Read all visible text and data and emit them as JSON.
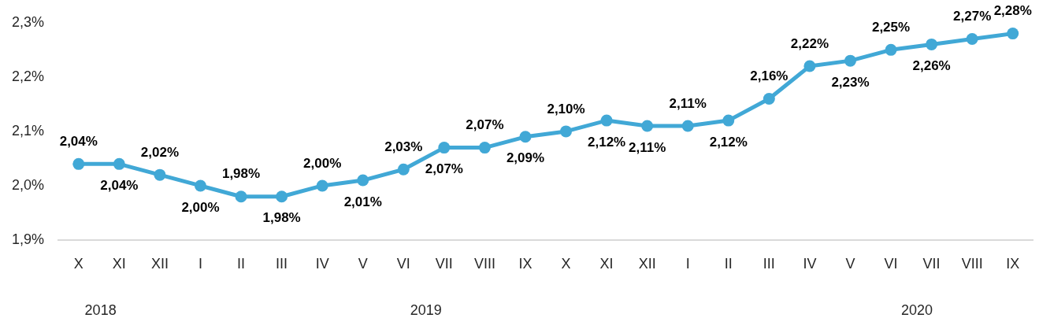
{
  "chart_data": {
    "type": "line",
    "categories": [
      "X",
      "XI",
      "XII",
      "I",
      "II",
      "III",
      "IV",
      "V",
      "VI",
      "VII",
      "VIII",
      "IX",
      "X",
      "XI",
      "XII",
      "I",
      "II",
      "III",
      "IV",
      "V",
      "VI",
      "VII",
      "VIII",
      "IX"
    ],
    "values": [
      2.04,
      2.04,
      2.02,
      2.0,
      1.98,
      1.98,
      2.0,
      2.01,
      2.03,
      2.07,
      2.07,
      2.09,
      2.1,
      2.12,
      2.11,
      2.11,
      2.12,
      2.16,
      2.22,
      2.23,
      2.25,
      2.26,
      2.27,
      2.28
    ],
    "value_labels": [
      "2,04%",
      "2,04%",
      "2,02%",
      "2,00%",
      "1,98%",
      "1,98%",
      "2,00%",
      "2,01%",
      "2,03%",
      "2,07%",
      "2,07%",
      "2,09%",
      "2,10%",
      "2,12%",
      "2,11%",
      "2,11%",
      "2,12%",
      "2,16%",
      "2,22%",
      "2,23%",
      "2,25%",
      "2,26%",
      "2,27%",
      "2,28%"
    ],
    "color": "#41a8d6",
    "marker": "circle",
    "ylim": [
      1.9,
      2.3
    ],
    "yticks": [
      {
        "value": 1.9,
        "label": "1,9%"
      },
      {
        "value": 2.0,
        "label": "2,0%"
      },
      {
        "value": 2.1,
        "label": "2,1%"
      },
      {
        "value": 2.2,
        "label": "2,2%"
      },
      {
        "value": 2.3,
        "label": "2,3%"
      }
    ],
    "annotations": [
      "2018",
      "2019",
      "2020"
    ]
  }
}
